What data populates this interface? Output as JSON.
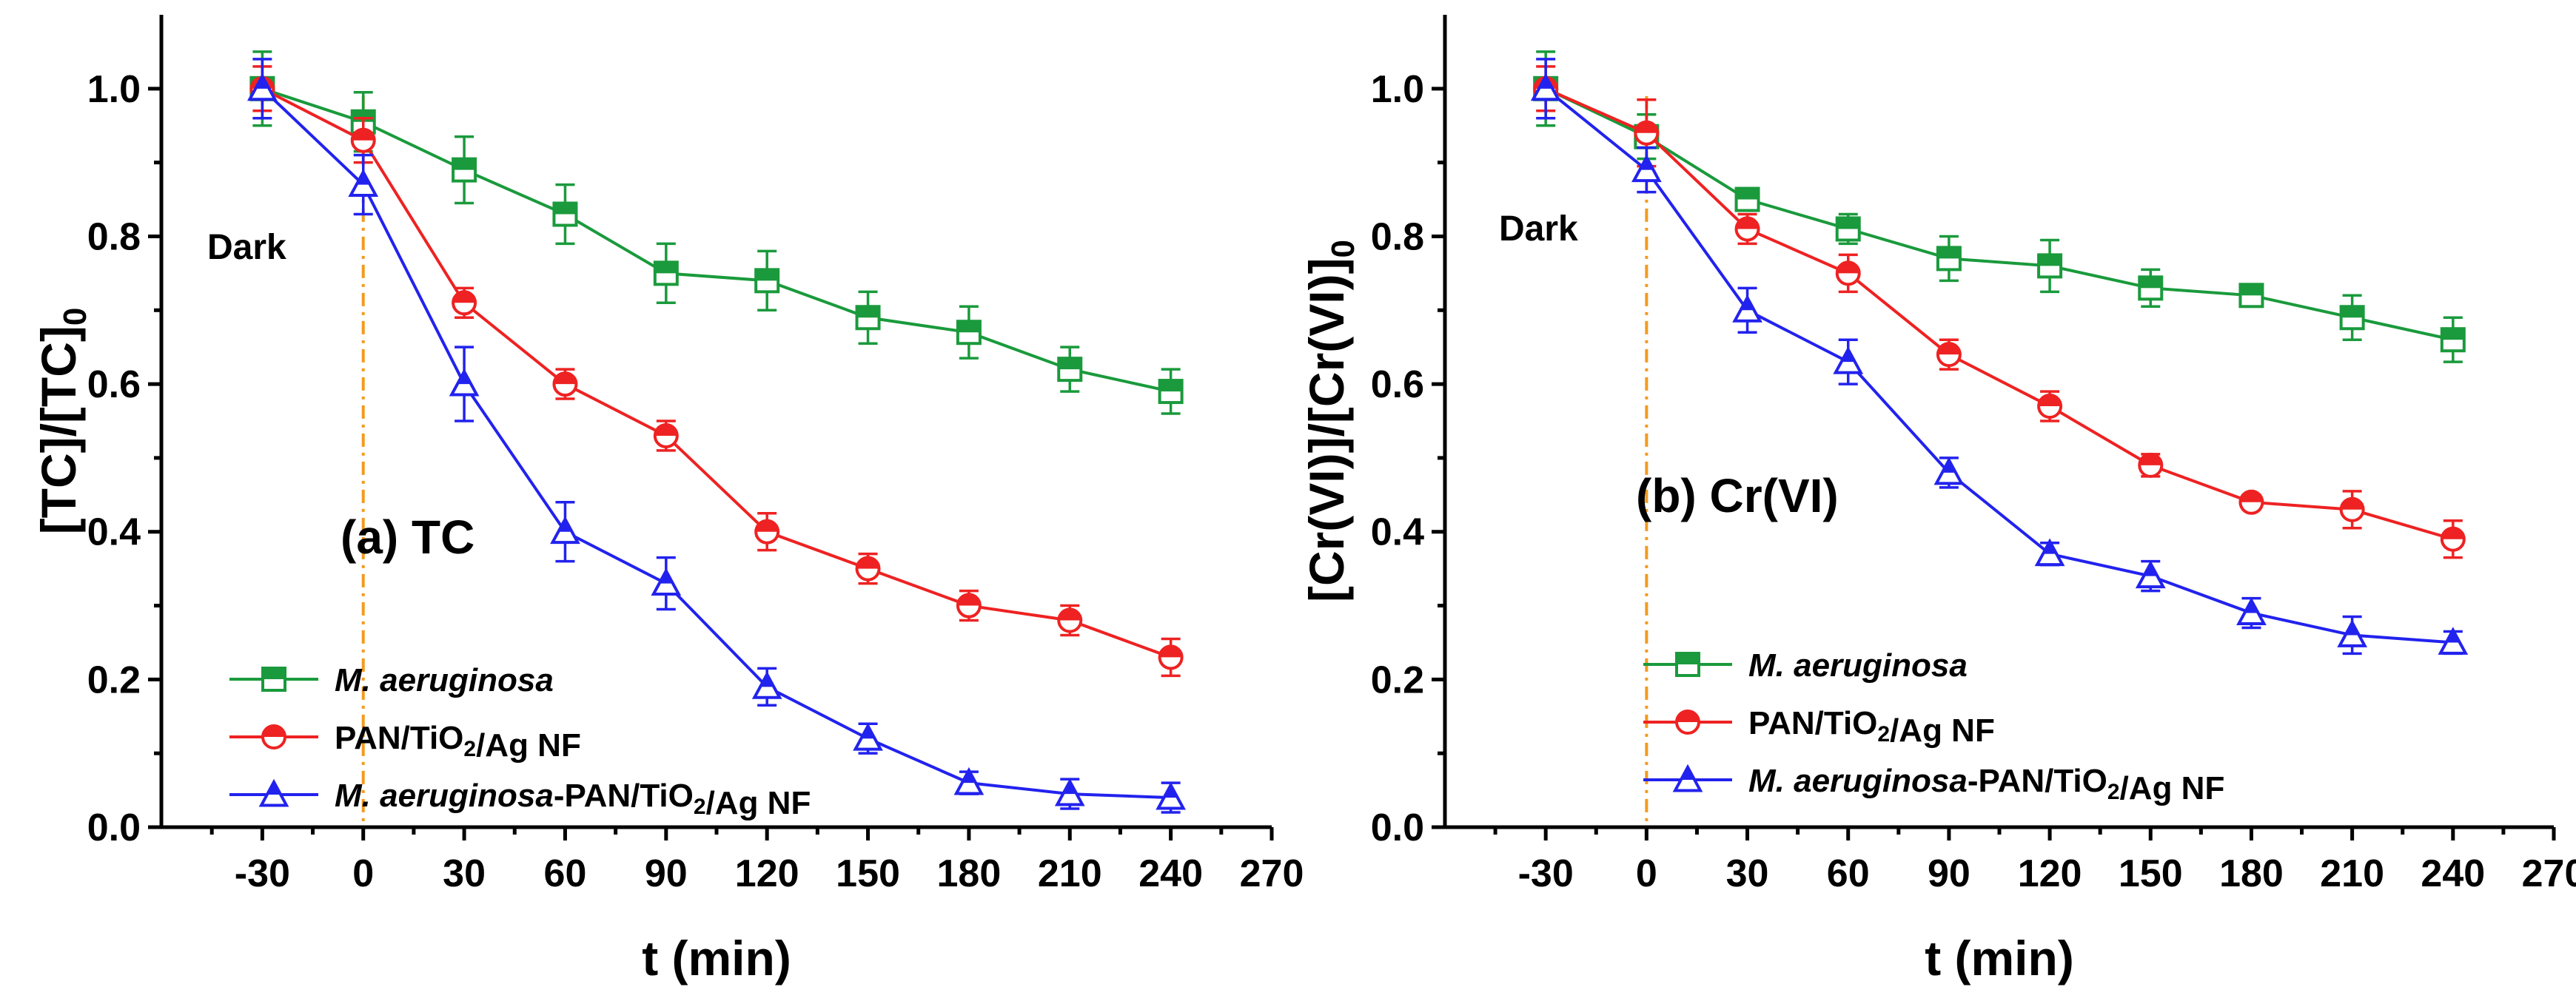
{
  "chart_data": [
    {
      "type": "line",
      "title": "(a) TC",
      "xlabel": "t (min)",
      "ylabel": "[TC]/[TC]0",
      "ylabel_main": "[TC]/[TC]",
      "ylabel_sub": "0",
      "xlim": [
        -60,
        270
      ],
      "ylim": [
        0.0,
        1.1
      ],
      "xticks": [
        -30,
        0,
        30,
        60,
        90,
        120,
        150,
        180,
        210,
        240,
        270
      ],
      "yticks": [
        0.0,
        0.2,
        0.4,
        0.6,
        0.8,
        1.0
      ],
      "xtick_labels": [
        "-30",
        "0",
        "30",
        "60",
        "90",
        "120",
        "150",
        "180",
        "210",
        "240",
        "270"
      ],
      "ytick_labels": [
        "0.0",
        "0.2",
        "0.4",
        "0.6",
        "0.8",
        "1.0"
      ],
      "dark_label": "Dark",
      "dark_x": 0,
      "x": [
        -30,
        0,
        30,
        60,
        90,
        120,
        150,
        180,
        210,
        240
      ],
      "series": [
        {
          "name": "M. aeruginosa",
          "color": "#1a9a3c",
          "marker": "square",
          "legend_parts": [
            {
              "t": "M. aeruginosa",
              "i": true
            }
          ],
          "values": [
            1.0,
            0.955,
            0.89,
            0.83,
            0.75,
            0.74,
            0.69,
            0.67,
            0.62,
            0.59
          ],
          "errors": [
            0.05,
            0.04,
            0.045,
            0.04,
            0.04,
            0.04,
            0.035,
            0.035,
            0.03,
            0.03
          ]
        },
        {
          "name": "PAN/TiO2/Ag NF",
          "color": "#ee2222",
          "marker": "circle",
          "legend_parts": [
            {
              "t": "PAN/TiO",
              "i": false
            },
            {
              "t": "2",
              "sub": true
            },
            {
              "t": "/Ag NF",
              "i": false
            }
          ],
          "values": [
            1.0,
            0.93,
            0.71,
            0.6,
            0.53,
            0.4,
            0.35,
            0.3,
            0.28,
            0.23
          ],
          "errors": [
            0.03,
            0.03,
            0.02,
            0.02,
            0.02,
            0.025,
            0.02,
            0.02,
            0.02,
            0.025
          ]
        },
        {
          "name": "M. aeruginosa-PAN/TiO2/Ag NF",
          "color": "#2222ee",
          "marker": "triangle",
          "legend_parts": [
            {
              "t": "M. aeruginosa",
              "i": true
            },
            {
              "t": "-PAN/TiO",
              "i": false
            },
            {
              "t": "2",
              "sub": true
            },
            {
              "t": "/Ag NF",
              "i": false
            }
          ],
          "values": [
            1.0,
            0.87,
            0.6,
            0.4,
            0.33,
            0.19,
            0.12,
            0.06,
            0.045,
            0.04
          ],
          "errors": [
            0.04,
            0.04,
            0.05,
            0.04,
            0.035,
            0.025,
            0.02,
            0.015,
            0.02,
            0.02
          ]
        }
      ]
    },
    {
      "type": "line",
      "title": "(b) Cr(VI)",
      "xlabel": "t (min)",
      "ylabel": "[Cr(VI)]/[Cr(VI)]0",
      "ylabel_main": "[Cr(VI)]/[Cr(VI)]",
      "ylabel_sub": "0",
      "xlim": [
        -60,
        270
      ],
      "ylim": [
        0.0,
        1.1
      ],
      "xticks": [
        -30,
        0,
        30,
        60,
        90,
        120,
        150,
        180,
        210,
        240,
        270
      ],
      "yticks": [
        0.0,
        0.2,
        0.4,
        0.6,
        0.8,
        1.0
      ],
      "xtick_labels": [
        "-30",
        "0",
        "30",
        "60",
        "90",
        "120",
        "150",
        "180",
        "210",
        "240",
        "270"
      ],
      "ytick_labels": [
        "0.0",
        "0.2",
        "0.4",
        "0.6",
        "0.8",
        "1.0"
      ],
      "dark_label": "Dark",
      "dark_x": 0,
      "x": [
        -30,
        0,
        30,
        60,
        90,
        120,
        150,
        180,
        210,
        240
      ],
      "series": [
        {
          "name": "M. aeruginosa",
          "color": "#1a9a3c",
          "marker": "square",
          "legend_parts": [
            {
              "t": "M. aeruginosa",
              "i": true
            }
          ],
          "values": [
            1.0,
            0.935,
            0.85,
            0.81,
            0.77,
            0.76,
            0.73,
            0.72,
            0.69,
            0.66
          ],
          "errors": [
            0.05,
            0.03,
            0.015,
            0.02,
            0.03,
            0.035,
            0.025,
            0.015,
            0.03,
            0.03
          ]
        },
        {
          "name": "PAN/TiO2/Ag NF",
          "color": "#ee2222",
          "marker": "circle",
          "legend_parts": [
            {
              "t": "PAN/TiO",
              "i": false
            },
            {
              "t": "2",
              "sub": true
            },
            {
              "t": "/Ag NF",
              "i": false
            }
          ],
          "values": [
            1.0,
            0.94,
            0.81,
            0.75,
            0.64,
            0.57,
            0.49,
            0.44,
            0.43,
            0.39
          ],
          "errors": [
            0.03,
            0.045,
            0.02,
            0.025,
            0.02,
            0.02,
            0.015,
            0.01,
            0.025,
            0.025
          ]
        },
        {
          "name": "M. aeruginosa-PAN/TiO2/Ag NF",
          "color": "#2222ee",
          "marker": "triangle",
          "legend_parts": [
            {
              "t": "M. aeruginosa",
              "i": true
            },
            {
              "t": "-PAN/TiO",
              "i": false
            },
            {
              "t": "2",
              "sub": true
            },
            {
              "t": "/Ag NF",
              "i": false
            }
          ],
          "values": [
            1.0,
            0.89,
            0.7,
            0.63,
            0.48,
            0.37,
            0.34,
            0.29,
            0.26,
            0.25
          ],
          "errors": [
            0.04,
            0.03,
            0.03,
            0.03,
            0.02,
            0.015,
            0.02,
            0.02,
            0.025,
            0.015
          ]
        }
      ]
    }
  ]
}
